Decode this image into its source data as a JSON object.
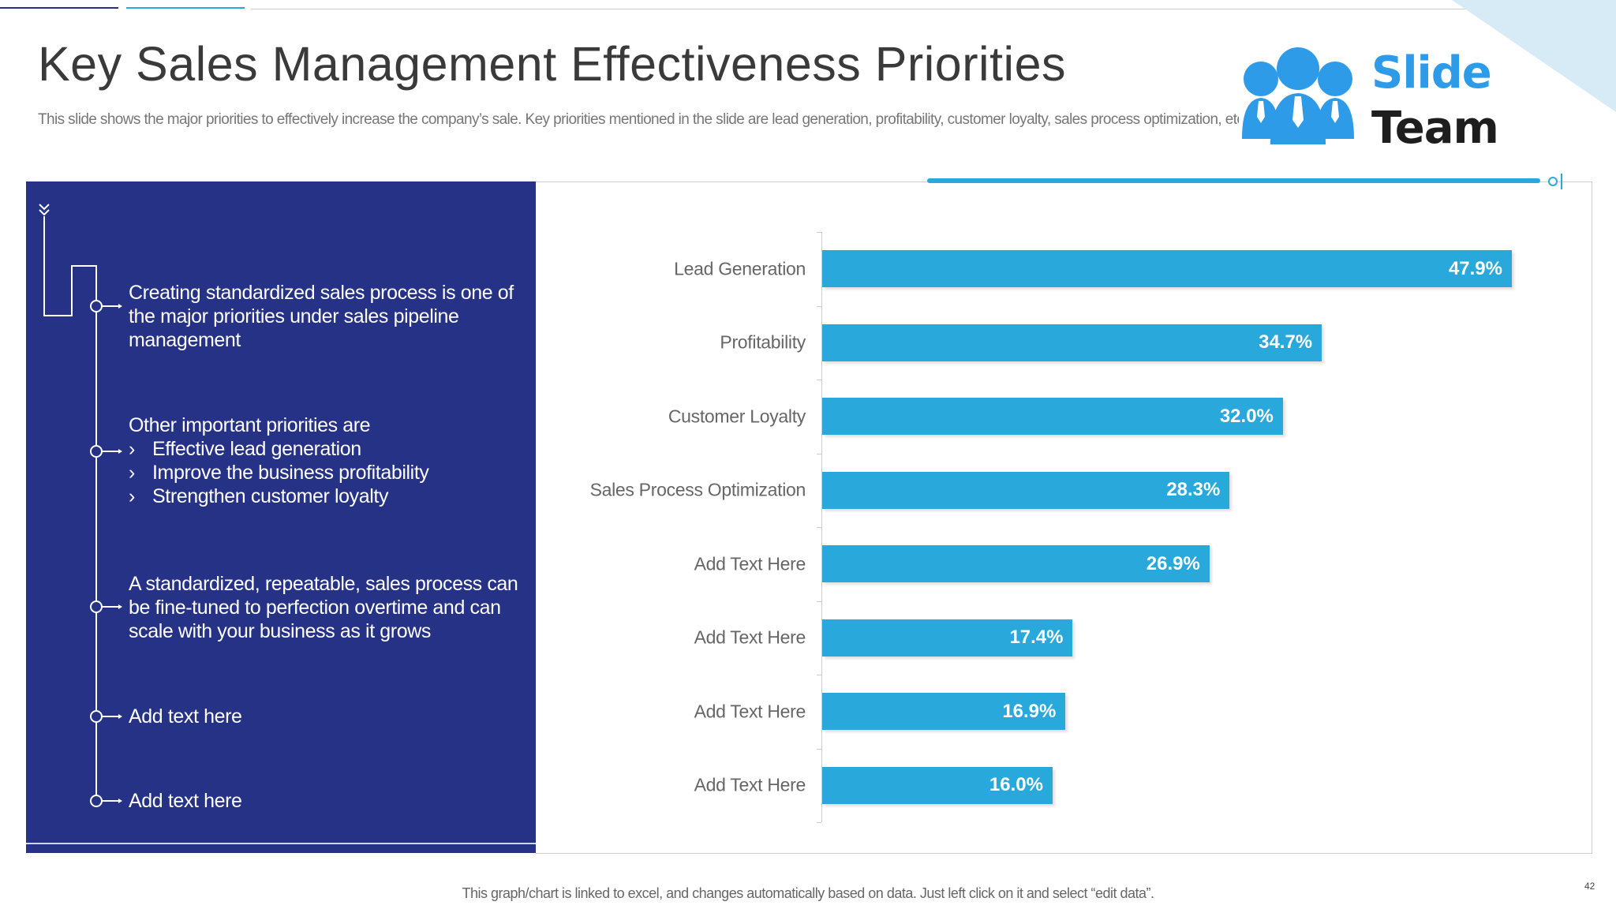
{
  "header": {
    "title": "Key Sales Management Effectiveness Priorities",
    "subtitle": "This slide shows the major priorities to effectively increase the company’s sale. Key priorities mentioned in the slide are lead generation, profitability, customer loyalty, sales process optimization, etc."
  },
  "logo": {
    "line1": "Slide",
    "line2": "Team",
    "icon": "people-with-ties-icon"
  },
  "panel": {
    "items": [
      {
        "text": "Creating standardized sales process is one of the major priorities under sales pipeline management"
      },
      {
        "text": "Other important priorities are",
        "bullets": [
          "Effective lead generation",
          "Improve the business profitability",
          "Strengthen customer loyalty"
        ]
      },
      {
        "text": "A standardized, repeatable, sales process can be fine-tuned to perfection overtime and can scale with your business as it grows"
      },
      {
        "text": "Add text here"
      },
      {
        "text": "Add text here"
      }
    ],
    "bullet_glyph": "›",
    "color": "#253286"
  },
  "chart_data": {
    "type": "bar",
    "orientation": "horizontal",
    "categories": [
      "Lead Generation",
      "Profitability",
      "Customer Loyalty",
      "Sales Process Optimization",
      "Add Text Here",
      "Add Text Here",
      "Add Text Here",
      "Add Text Here"
    ],
    "values": [
      47.9,
      34.7,
      32.0,
      28.3,
      26.9,
      17.4,
      16.9,
      16.0
    ],
    "data_labels": [
      "47.9%",
      "34.7%",
      "32.0%",
      "28.3%",
      "26.9%",
      "17.4%",
      "16.9%",
      "16.0%"
    ],
    "unit": "%",
    "bar_color": "#29a8db",
    "grid": false,
    "legend": "none"
  },
  "footer": {
    "note": "This graph/chart is linked to excel, and changes automatically based on data. Just left click on it and select “edit data”.",
    "page_number": "42"
  }
}
